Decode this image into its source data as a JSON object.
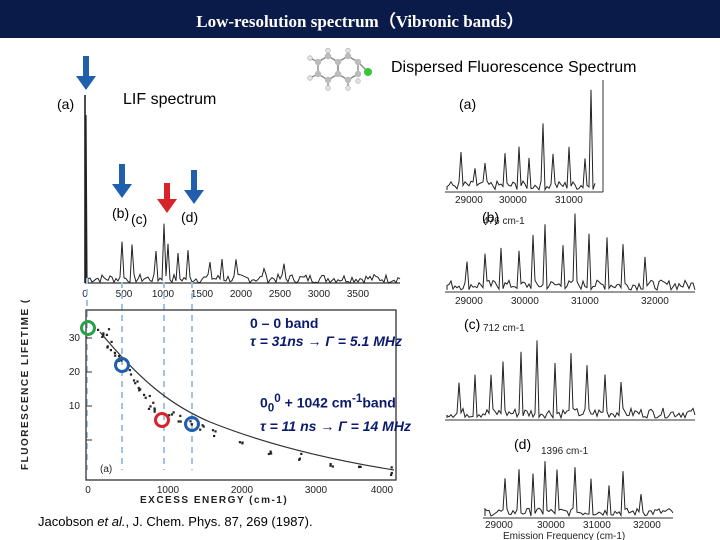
{
  "slide": {
    "title": "Low-resolution spectrum（Vibronic bands）",
    "df_title": "Dispersed Fluorescence Spectrum",
    "lif_title": "LIF spectrum"
  },
  "lif_panel": {
    "label_a": "(a)",
    "label_b": "(b)",
    "label_c": "(c)",
    "label_d": "(d)",
    "x_ticks": [
      "0",
      "500",
      "1000",
      "1500",
      "2000",
      "2500",
      "3000",
      "3500"
    ]
  },
  "lifetime_panel": {
    "y_axis_title": "FLUORESCENCE LIFETIME (ns)",
    "x_axis_title": "EXCESS ENERGY (cm-1)",
    "panel_tag": "(a)",
    "x_ticks": [
      "0",
      "1000",
      "2000",
      "3000",
      "4000"
    ],
    "y_ticks": [
      "10",
      "20",
      "30"
    ]
  },
  "annotations": {
    "band1_line1": "0 – 0 band",
    "band1_tau": "τ = 31ns",
    "band1_arrow": "→",
    "band1_gamma": "Γ = 5.1 MHz",
    "band2_base": "0",
    "band2_sub": "0",
    "band2_sup": "0",
    "band2_mid": " + 1042 cm",
    "band2_sup2": "-1",
    "band2_end": "band",
    "band2_tau": "τ = 11 ns",
    "band2_arrow": "→",
    "band2_gamma": "Γ = 14 MHz"
  },
  "df_panels": {
    "a_label": "(a)",
    "a_ticks": [
      "29000",
      "30000",
      "31000"
    ],
    "b_label": "(b)",
    "b_annot": "476 cm-1",
    "b_ticks": [
      "29000",
      "30000",
      "31000",
      "32000"
    ],
    "c_label": "(c)",
    "c_annot": "712 cm-1",
    "d_label": "(d)",
    "d_annot": "1396 cm-1",
    "d_ticks": [
      "29000",
      "30000",
      "31000",
      "32000"
    ],
    "x_axis_title": "Emission Frequency (cm-1)"
  },
  "citation": {
    "authors": "Jacobson ",
    "etal": "et al.",
    "rest": ", J. Chem. Phys. 87, 269 (1987)."
  },
  "colors": {
    "title_bar": "#0a1b4a",
    "arrow_blue": "#1f5fae",
    "arrow_red": "#d9232b",
    "circle_green": "#2aa04a",
    "circle_blue": "#1f5fae",
    "circle_red": "#d9232b",
    "dash": "#9ec3e6",
    "annotation_text": "#0b1a6e"
  }
}
